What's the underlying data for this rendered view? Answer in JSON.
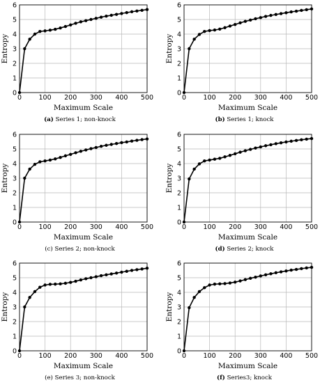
{
  "chart_data": [
    {
      "type": "line",
      "caption_letter": "(a)",
      "caption_text": "Series 1; non-knock",
      "xlabel": "Maximum Scale",
      "ylabel": "Entropy",
      "xlim": [
        0,
        500
      ],
      "ylim": [
        0,
        6
      ],
      "xticks": [
        0,
        100,
        200,
        300,
        400,
        500
      ],
      "yticks": [
        0,
        1,
        2,
        3,
        4,
        5,
        6
      ],
      "grid": true,
      "x": [
        0,
        20,
        40,
        60,
        80,
        100,
        120,
        140,
        160,
        180,
        200,
        220,
        240,
        260,
        280,
        300,
        320,
        340,
        360,
        380,
        400,
        420,
        440,
        460,
        480,
        500
      ],
      "y": [
        0,
        3.0,
        3.65,
        4.0,
        4.18,
        4.22,
        4.27,
        4.33,
        4.42,
        4.52,
        4.63,
        4.74,
        4.84,
        4.92,
        5.0,
        5.08,
        5.16,
        5.23,
        5.29,
        5.35,
        5.41,
        5.47,
        5.53,
        5.58,
        5.63,
        5.68
      ]
    },
    {
      "type": "line",
      "caption_letter": "(b)",
      "caption_text": "Series 1; knock",
      "xlabel": "Maximum Scale",
      "ylabel": "Entropy",
      "xlim": [
        0,
        500
      ],
      "ylim": [
        0,
        6
      ],
      "xticks": [
        0,
        100,
        200,
        300,
        400,
        500
      ],
      "yticks": [
        0,
        1,
        2,
        3,
        4,
        5,
        6
      ],
      "grid": true,
      "x": [
        0,
        20,
        40,
        60,
        80,
        100,
        120,
        140,
        160,
        180,
        200,
        220,
        240,
        260,
        280,
        300,
        320,
        340,
        360,
        380,
        400,
        420,
        440,
        460,
        480,
        500
      ],
      "y": [
        0,
        3.0,
        3.65,
        3.98,
        4.18,
        4.24,
        4.28,
        4.34,
        4.44,
        4.55,
        4.66,
        4.77,
        4.87,
        4.96,
        5.05,
        5.13,
        5.21,
        5.28,
        5.34,
        5.4,
        5.46,
        5.52,
        5.57,
        5.62,
        5.67,
        5.72
      ]
    },
    {
      "type": "line",
      "caption_letter": "",
      "caption_text": "(c) Series 2; non-knock",
      "xlabel": "Maximum Scale",
      "ylabel": "Entropy",
      "xlim": [
        0,
        500
      ],
      "ylim": [
        0,
        6
      ],
      "xticks": [
        0,
        100,
        200,
        300,
        400,
        500
      ],
      "yticks": [
        0,
        1,
        2,
        3,
        4,
        5,
        6
      ],
      "grid": true,
      "x": [
        0,
        20,
        40,
        60,
        80,
        100,
        120,
        140,
        160,
        180,
        200,
        220,
        240,
        260,
        280,
        300,
        320,
        340,
        360,
        380,
        400,
        420,
        440,
        460,
        480,
        500
      ],
      "y": [
        0,
        3.0,
        3.62,
        3.95,
        4.12,
        4.18,
        4.24,
        4.32,
        4.42,
        4.53,
        4.63,
        4.74,
        4.84,
        4.93,
        5.02,
        5.1,
        5.18,
        5.25,
        5.31,
        5.37,
        5.43,
        5.48,
        5.54,
        5.59,
        5.64,
        5.68
      ]
    },
    {
      "type": "line",
      "caption_letter": "(d)",
      "caption_text": "Series 2; knock",
      "xlabel": "Maximum Scale",
      "ylabel": "Entropy",
      "xlim": [
        0,
        500
      ],
      "ylim": [
        0,
        6
      ],
      "xticks": [
        0,
        100,
        200,
        300,
        400,
        500
      ],
      "yticks": [
        0,
        1,
        2,
        3,
        4,
        5,
        6
      ],
      "grid": true,
      "x": [
        0,
        20,
        40,
        60,
        80,
        100,
        120,
        140,
        160,
        180,
        200,
        220,
        240,
        260,
        280,
        300,
        320,
        340,
        360,
        380,
        400,
        420,
        440,
        460,
        480,
        500
      ],
      "y": [
        0,
        2.95,
        3.62,
        3.98,
        4.18,
        4.24,
        4.3,
        4.36,
        4.46,
        4.56,
        4.67,
        4.78,
        4.88,
        4.97,
        5.06,
        5.14,
        5.22,
        5.29,
        5.36,
        5.42,
        5.48,
        5.53,
        5.58,
        5.63,
        5.67,
        5.71
      ]
    },
    {
      "type": "line",
      "caption_letter": "",
      "caption_text": "(e) Series 3; non-knock",
      "xlabel": "Maximum Scale",
      "ylabel": "Entropy",
      "xlim": [
        0,
        500
      ],
      "ylim": [
        0,
        6
      ],
      "xticks": [
        0,
        100,
        200,
        300,
        400,
        500
      ],
      "yticks": [
        0,
        1,
        2,
        3,
        4,
        5,
        6
      ],
      "grid": true,
      "x": [
        0,
        20,
        40,
        60,
        80,
        100,
        120,
        140,
        160,
        180,
        200,
        220,
        240,
        260,
        280,
        300,
        320,
        340,
        360,
        380,
        400,
        420,
        440,
        460,
        480,
        500
      ],
      "y": [
        0,
        3.0,
        3.65,
        4.05,
        4.35,
        4.5,
        4.55,
        4.56,
        4.58,
        4.62,
        4.68,
        4.76,
        4.85,
        4.93,
        5.0,
        5.07,
        5.14,
        5.2,
        5.26,
        5.32,
        5.38,
        5.44,
        5.5,
        5.55,
        5.6,
        5.65
      ]
    },
    {
      "type": "line",
      "caption_letter": "(f)",
      "caption_text": "Series3; knock",
      "xlabel": "Maximum Scale",
      "ylabel": "Entropy",
      "xlim": [
        0,
        500
      ],
      "ylim": [
        0,
        6
      ],
      "xticks": [
        0,
        100,
        200,
        300,
        400,
        500
      ],
      "yticks": [
        0,
        1,
        2,
        3,
        4,
        5,
        6
      ],
      "grid": true,
      "x": [
        0,
        20,
        40,
        60,
        80,
        100,
        120,
        140,
        160,
        180,
        200,
        220,
        240,
        260,
        280,
        300,
        320,
        340,
        360,
        380,
        400,
        420,
        440,
        460,
        480,
        500
      ],
      "y": [
        0,
        2.95,
        3.65,
        4.05,
        4.32,
        4.5,
        4.56,
        4.58,
        4.6,
        4.64,
        4.7,
        4.78,
        4.87,
        4.96,
        5.04,
        5.12,
        5.2,
        5.27,
        5.34,
        5.4,
        5.46,
        5.52,
        5.57,
        5.62,
        5.67,
        5.71
      ]
    }
  ],
  "colors": {
    "line": "#000000",
    "grid": "#b8b8b8",
    "axis": "#000000"
  }
}
